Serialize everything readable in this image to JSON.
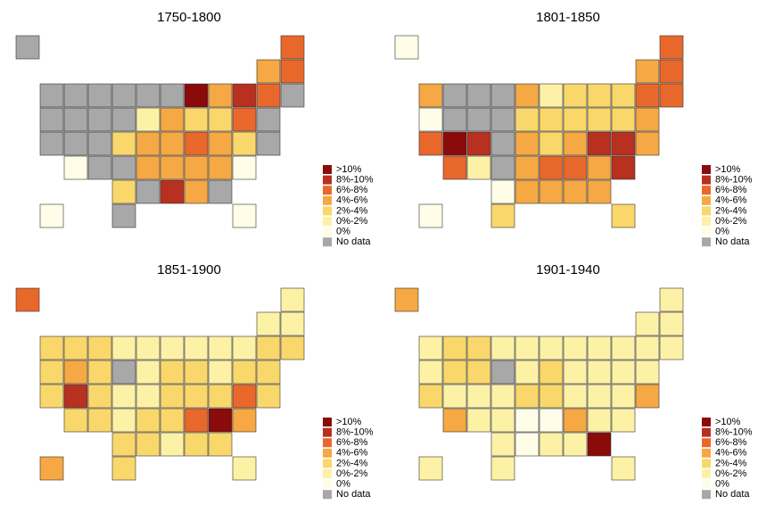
{
  "panels": [
    {
      "title": "1750-1800"
    },
    {
      "title": "1801-1850"
    },
    {
      "title": "1851-1900"
    },
    {
      "title": "1901-1940"
    }
  ],
  "legend": {
    "labels": [
      ">10%",
      "8%-10%",
      "6%-8%",
      "4%-6%",
      "2%-4%",
      "0%-2%",
      "0%",
      "No data"
    ],
    "colors": [
      "#8b0a0a",
      "#b8301f",
      "#e8682c",
      "#f5a843",
      "#f9d76b",
      "#fdf1a6",
      "#fffde8",
      "#a8a8a8"
    ]
  }
}
